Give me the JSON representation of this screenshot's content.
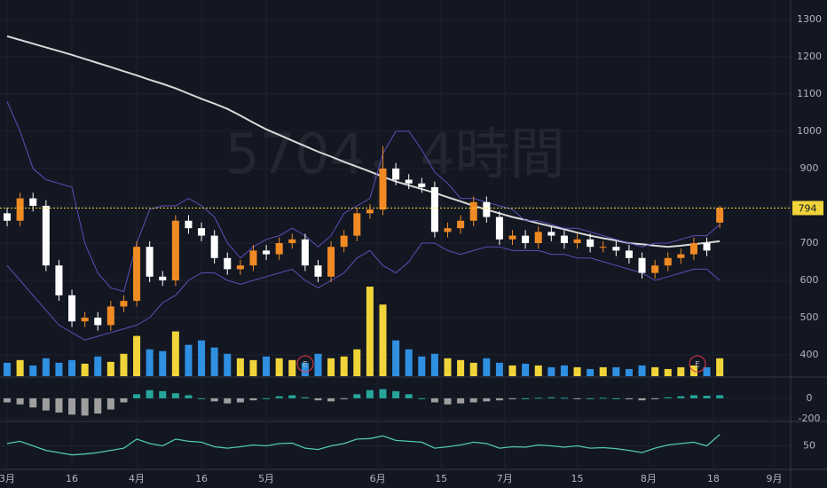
{
  "chart_data": [
    {
      "type": "candlestick",
      "title": "5704，4時間",
      "event_label": "E",
      "xlim": [
        -0.55,
        60.4
      ],
      "xticks": [
        {
          "value": 0,
          "label": "3月"
        },
        {
          "value": 5,
          "label": "16"
        },
        {
          "value": 10,
          "label": "4月"
        },
        {
          "value": 15,
          "label": "16"
        },
        {
          "value": 20,
          "label": "5月"
        },
        {
          "value": 28.6,
          "label": "6月"
        },
        {
          "value": 33.5,
          "label": "15"
        },
        {
          "value": 38.4,
          "label": "7月"
        },
        {
          "value": 44,
          "label": "15"
        },
        {
          "value": 49.5,
          "label": "8月"
        },
        {
          "value": 54.5,
          "label": "18"
        },
        {
          "value": 59.2,
          "label": "9月"
        }
      ],
      "ylim": [
        343,
        1352
      ],
      "yticks": [
        400,
        500,
        600,
        700,
        800,
        900,
        1000,
        1100,
        1200,
        1300
      ],
      "last_price": 794,
      "up_color": "#f08a24",
      "down_color": "#ffffff",
      "open": [
        780,
        760,
        820,
        800,
        640,
        560,
        490,
        500,
        480,
        530,
        545,
        690,
        610,
        600,
        760,
        740,
        720,
        660,
        630,
        640,
        680,
        670,
        700,
        710,
        640,
        610,
        690,
        720,
        780,
        790,
        900,
        870,
        860,
        850,
        730,
        740,
        760,
        810,
        770,
        710,
        720,
        700,
        730,
        720,
        700,
        710,
        690,
        690,
        680,
        660,
        620,
        640,
        660,
        670,
        700,
        755
      ],
      "high": [
        795,
        835,
        835,
        815,
        655,
        575,
        515,
        515,
        545,
        560,
        705,
        705,
        625,
        775,
        775,
        755,
        735,
        675,
        655,
        695,
        695,
        715,
        725,
        725,
        655,
        705,
        735,
        795,
        805,
        960,
        915,
        885,
        875,
        865,
        755,
        775,
        825,
        825,
        785,
        735,
        735,
        745,
        745,
        735,
        725,
        725,
        705,
        705,
        695,
        675,
        655,
        675,
        685,
        715,
        715,
        800
      ],
      "low": [
        745,
        745,
        785,
        625,
        545,
        475,
        475,
        465,
        465,
        515,
        530,
        595,
        585,
        585,
        725,
        705,
        645,
        615,
        615,
        625,
        655,
        655,
        685,
        625,
        595,
        595,
        675,
        705,
        765,
        775,
        855,
        845,
        835,
        715,
        715,
        725,
        745,
        755,
        695,
        695,
        685,
        685,
        705,
        685,
        685,
        675,
        675,
        665,
        645,
        605,
        605,
        625,
        645,
        655,
        665,
        740
      ],
      "close": [
        760,
        820,
        800,
        640,
        560,
        490,
        500,
        480,
        530,
        545,
        690,
        610,
        600,
        760,
        740,
        720,
        660,
        630,
        640,
        680,
        670,
        700,
        710,
        640,
        610,
        690,
        720,
        780,
        790,
        900,
        870,
        860,
        850,
        730,
        740,
        760,
        810,
        770,
        710,
        720,
        700,
        730,
        720,
        700,
        710,
        690,
        690,
        680,
        660,
        620,
        640,
        660,
        670,
        700,
        680,
        794
      ],
      "series": [
        {
          "color": "#d8d8d8",
          "values": [
            1255,
            1245,
            1235,
            1225,
            1215,
            1205,
            1194,
            1183,
            1172,
            1161,
            1150,
            1138,
            1127,
            1115,
            1101,
            1087,
            1074,
            1060,
            1042,
            1023,
            1005,
            990,
            975,
            960,
            945,
            932,
            918,
            905,
            892,
            878,
            865,
            855,
            845,
            835,
            823,
            812,
            800,
            790,
            780,
            770,
            762,
            753,
            745,
            737,
            728,
            720,
            713,
            707,
            700,
            697,
            693,
            690,
            693,
            697,
            701,
            705
          ]
        },
        {
          "color": "#5b4fb8",
          "values": [
            1080,
            1000,
            900,
            870,
            860,
            850,
            700,
            620,
            580,
            570,
            700,
            790,
            800,
            800,
            820,
            800,
            770,
            700,
            660,
            690,
            710,
            720,
            740,
            720,
            690,
            720,
            780,
            800,
            820,
            940,
            1000,
            1000,
            950,
            890,
            860,
            820,
            820,
            810,
            800,
            790,
            760,
            760,
            750,
            740,
            740,
            730,
            720,
            710,
            700,
            690,
            700,
            700,
            710,
            720,
            720,
            750
          ]
        },
        {
          "color": "#5b4fb8",
          "values": [
            640,
            600,
            560,
            520,
            480,
            460,
            440,
            450,
            460,
            470,
            480,
            500,
            540,
            560,
            600,
            620,
            620,
            600,
            590,
            600,
            610,
            620,
            630,
            600,
            580,
            600,
            620,
            660,
            680,
            640,
            620,
            650,
            700,
            700,
            680,
            670,
            680,
            690,
            690,
            680,
            680,
            680,
            670,
            670,
            660,
            660,
            650,
            640,
            630,
            620,
            600,
            610,
            620,
            630,
            630,
            600
          ]
        }
      ],
      "volume": [
        15,
        18,
        12,
        20,
        15,
        18,
        14,
        22,
        16,
        25,
        45,
        30,
        28,
        50,
        35,
        40,
        32,
        25,
        20,
        18,
        22,
        20,
        18,
        15,
        25,
        20,
        22,
        30,
        100,
        80,
        40,
        30,
        22,
        25,
        20,
        18,
        15,
        20,
        15,
        12,
        14,
        12,
        10,
        12,
        10,
        8,
        10,
        10,
        8,
        12,
        10,
        8,
        10,
        12,
        10,
        20
      ],
      "vlim": [
        0,
        105
      ],
      "volume_up_color": "#f0d43a",
      "volume_down_color": "#2f8fe0"
    },
    {
      "type": "histogram",
      "ylim": [
        -210,
        191
      ],
      "yticks": [
        -200,
        0
      ],
      "pos_color": "#26a69a",
      "neg_color": "#9e9e9e",
      "values": [
        -40,
        -60,
        -90,
        -120,
        -140,
        -160,
        -170,
        -150,
        -110,
        -40,
        40,
        80,
        70,
        50,
        30,
        0,
        -30,
        -50,
        -40,
        -20,
        0,
        20,
        30,
        10,
        -20,
        -30,
        -10,
        40,
        80,
        90,
        70,
        40,
        0,
        -40,
        -60,
        -50,
        -40,
        -30,
        -20,
        -10,
        0,
        5,
        10,
        5,
        -5,
        0,
        5,
        0,
        -10,
        -20,
        -10,
        10,
        20,
        30,
        25,
        30
      ]
    },
    {
      "type": "line",
      "ylim": [
        0,
        100
      ],
      "yticks": [
        50
      ],
      "color": "#4fc9a8",
      "values": [
        55,
        60,
        50,
        40,
        35,
        30,
        32,
        35,
        40,
        45,
        65,
        55,
        50,
        65,
        60,
        58,
        48,
        45,
        48,
        52,
        50,
        55,
        56,
        45,
        42,
        50,
        55,
        65,
        66,
        72,
        62,
        60,
        58,
        45,
        48,
        52,
        58,
        55,
        45,
        48,
        47,
        52,
        50,
        47,
        50,
        45,
        46,
        44,
        40,
        35,
        45,
        52,
        55,
        58,
        50,
        75
      ]
    }
  ]
}
